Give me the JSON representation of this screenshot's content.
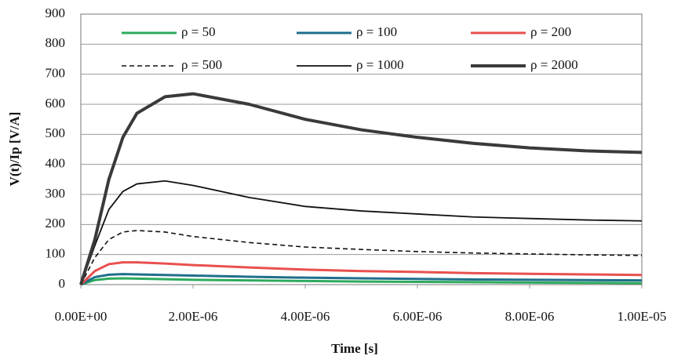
{
  "chart_data": {
    "type": "line",
    "x_label": "Time [s]",
    "y_label": "V(t)/Ip [V/A]",
    "x": [
      0,
      2.5e-07,
      5e-07,
      7.5e-07,
      1e-06,
      1.5e-06,
      2e-06,
      3e-06,
      4e-06,
      5e-06,
      6e-06,
      7e-06,
      8e-06,
      9e-06,
      1e-05
    ],
    "series": [
      {
        "name": "ρ = 50",
        "color": "#2eaa5e",
        "line_width": 3,
        "dash": false,
        "values": [
          0,
          15,
          20,
          21,
          20,
          18,
          16,
          14,
          12,
          10,
          9,
          8,
          7,
          6,
          5
        ]
      },
      {
        "name": "ρ = 100",
        "color": "#1f6f8b",
        "line_width": 3,
        "dash": false,
        "values": [
          0,
          25,
          33,
          35,
          34,
          32,
          30,
          26,
          23,
          21,
          19,
          17,
          16,
          15,
          14
        ]
      },
      {
        "name": "ρ = 200",
        "color": "#e8504f",
        "line_width": 3,
        "dash": false,
        "values": [
          0,
          45,
          68,
          74,
          74,
          70,
          65,
          57,
          50,
          45,
          42,
          38,
          36,
          34,
          32
        ]
      },
      {
        "name": "ρ = 500",
        "color": "#111111",
        "line_width": 1.6,
        "dash": true,
        "values": [
          0,
          90,
          150,
          175,
          180,
          175,
          160,
          140,
          125,
          117,
          110,
          105,
          102,
          99,
          97
        ]
      },
      {
        "name": "ρ = 1000",
        "color": "#111111",
        "line_width": 1.8,
        "dash": false,
        "values": [
          0,
          130,
          250,
          310,
          335,
          345,
          330,
          290,
          260,
          245,
          235,
          225,
          220,
          215,
          212
        ]
      },
      {
        "name": "ρ = 2000",
        "color": "#3a3a3a",
        "line_width": 4,
        "dash": false,
        "values": [
          0,
          150,
          350,
          490,
          570,
          625,
          635,
          600,
          550,
          515,
          490,
          470,
          455,
          445,
          440
        ]
      }
    ],
    "xlim": [
      0,
      1e-05
    ],
    "xticks": [
      {
        "value": 0,
        "label": "0.00E+00"
      },
      {
        "value": 2e-06,
        "label": "2.00E-06"
      },
      {
        "value": 4e-06,
        "label": "4.00E-06"
      },
      {
        "value": 6e-06,
        "label": "6.00E-06"
      },
      {
        "value": 8e-06,
        "label": "8.00E-06"
      },
      {
        "value": 1e-05,
        "label": "1.00E-05"
      }
    ],
    "ylim": [
      0,
      900
    ],
    "yticks": [
      0,
      100,
      200,
      300,
      400,
      500,
      600,
      700,
      800,
      900
    ],
    "grid": true
  }
}
